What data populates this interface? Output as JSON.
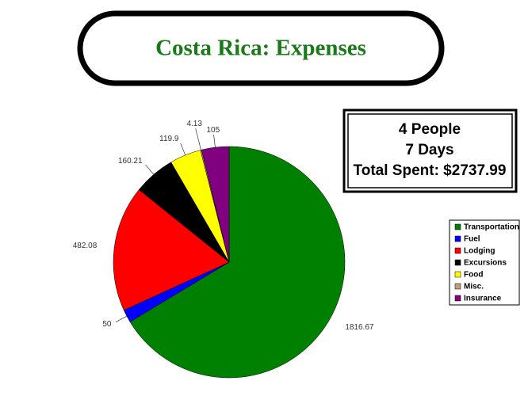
{
  "chart_data": {
    "type": "pie",
    "title": "Costa Rica: Expenses",
    "info": [
      "4 People",
      "7 Days",
      "Total Spent: $2737.99"
    ],
    "categories": [
      "Transportation",
      "Fuel",
      "Lodging",
      "Excursions",
      "Food",
      "Misc.",
      "Insurance"
    ],
    "values": [
      1816.67,
      50,
      482.08,
      160.21,
      119.9,
      4.13,
      105
    ],
    "colors": [
      "#008000",
      "#0000ff",
      "#ff0000",
      "#000000",
      "#ffff00",
      "#c0a080",
      "#800080"
    ],
    "legend": "right"
  }
}
